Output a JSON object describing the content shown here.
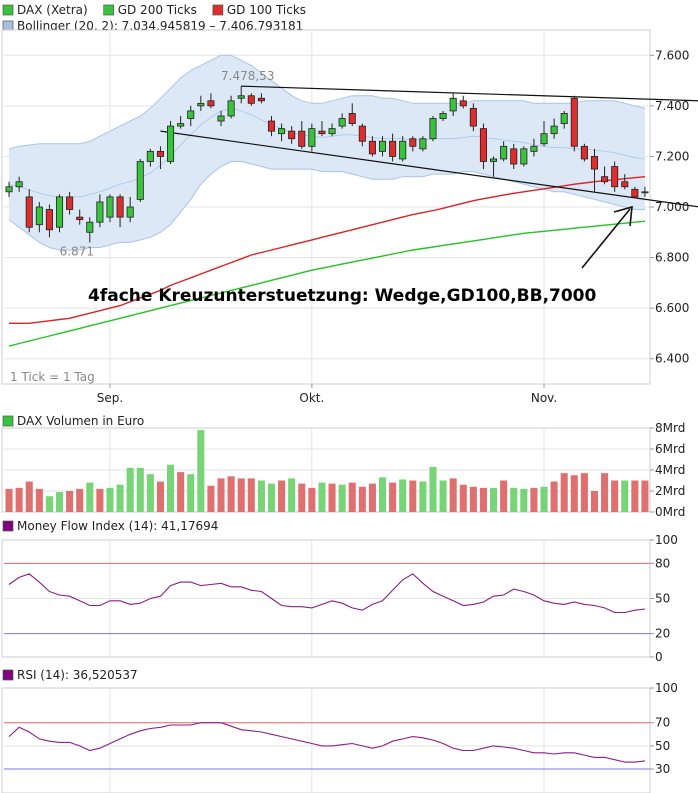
{
  "colors": {
    "up": "#39c23c",
    "down": "#de2d2d",
    "band_fill": "#dde8f6",
    "band_line": "#a9c4e6",
    "gd100": "#dd2222",
    "gd200": "#22c422",
    "volume_up": "#77d477",
    "volume_down": "#e07070",
    "mfi_line": "#8a1e8a",
    "upper_ref": "#e86a6a",
    "lower_ref": "#7a7ae6",
    "grid": "#e3e3e3",
    "frame": "#cccccc"
  },
  "chart_data": [
    {
      "type": "candlestick",
      "legend": [
        {
          "name": "DAX (Xetra)",
          "icon": "square-green-icon"
        },
        {
          "name": "GD 200 Ticks",
          "icon": "square-green-icon"
        },
        {
          "name": "GD 100 Ticks",
          "icon": "square-red-icon"
        },
        {
          "name": "Bollinger (20, 2): 7.034,945819 – 7.406,793181",
          "icon": "square-blue-icon"
        }
      ],
      "note": "1 Tick = 1 Tag",
      "annotation": "4fache Kreuzunterstuetzung: Wedge,GD100,BB,7000",
      "label_high": "7.478,53",
      "label_low": "6.871",
      "ylim": [
        6300,
        7700
      ],
      "y_ticks": [
        {
          "v": 6400,
          "label": "6.400"
        },
        {
          "v": 6600,
          "label": "6.600"
        },
        {
          "v": 6800,
          "label": "6.800"
        },
        {
          "v": 7000,
          "label": "7.000"
        },
        {
          "v": 7200,
          "label": "7.200"
        },
        {
          "v": 7400,
          "label": "7.400"
        },
        {
          "v": 7600,
          "label": "7.600"
        }
      ],
      "x_ticks": [
        {
          "i": 10,
          "label": "Sep."
        },
        {
          "i": 30,
          "label": "Okt."
        },
        {
          "i": 53,
          "label": "Nov."
        }
      ],
      "candles": [
        [
          7060,
          7100,
          7040,
          7080
        ],
        [
          7080,
          7120,
          7060,
          7100
        ],
        [
          7040,
          7070,
          6900,
          6920
        ],
        [
          6930,
          7020,
          6900,
          7000
        ],
        [
          6990,
          7010,
          6880,
          6910
        ],
        [
          6920,
          7050,
          6900,
          7040
        ],
        [
          7040,
          7060,
          6970,
          6990
        ],
        [
          6960,
          6990,
          6930,
          6950
        ],
        [
          6900,
          6960,
          6860,
          6940
        ],
        [
          6940,
          7050,
          6920,
          7020
        ],
        [
          6960,
          7050,
          6940,
          7040
        ],
        [
          7040,
          7050,
          6920,
          6960
        ],
        [
          6960,
          7040,
          6940,
          7000
        ],
        [
          7030,
          7190,
          7020,
          7180
        ],
        [
          7180,
          7230,
          7160,
          7220
        ],
        [
          7220,
          7240,
          7150,
          7200
        ],
        [
          7180,
          7340,
          7170,
          7320
        ],
        [
          7320,
          7360,
          7310,
          7330
        ],
        [
          7350,
          7400,
          7320,
          7380
        ],
        [
          7400,
          7440,
          7380,
          7410
        ],
        [
          7420,
          7450,
          7390,
          7400
        ],
        [
          7340,
          7380,
          7320,
          7360
        ],
        [
          7360,
          7440,
          7350,
          7420
        ],
        [
          7430,
          7478,
          7410,
          7440
        ],
        [
          7440,
          7450,
          7400,
          7410
        ],
        [
          7430,
          7450,
          7410,
          7420
        ],
        [
          7340,
          7360,
          7280,
          7300
        ],
        [
          7290,
          7330,
          7260,
          7310
        ],
        [
          7300,
          7320,
          7250,
          7270
        ],
        [
          7300,
          7340,
          7230,
          7240
        ],
        [
          7240,
          7330,
          7220,
          7310
        ],
        [
          7300,
          7340,
          7280,
          7290
        ],
        [
          7290,
          7330,
          7280,
          7310
        ],
        [
          7320,
          7370,
          7310,
          7350
        ],
        [
          7370,
          7410,
          7320,
          7330
        ],
        [
          7320,
          7330,
          7240,
          7260
        ],
        [
          7260,
          7280,
          7200,
          7210
        ],
        [
          7220,
          7280,
          7200,
          7260
        ],
        [
          7260,
          7290,
          7180,
          7200
        ],
        [
          7190,
          7280,
          7180,
          7260
        ],
        [
          7270,
          7280,
          7220,
          7240
        ],
        [
          7230,
          7280,
          7220,
          7270
        ],
        [
          7270,
          7360,
          7260,
          7350
        ],
        [
          7350,
          7380,
          7340,
          7370
        ],
        [
          7380,
          7450,
          7360,
          7430
        ],
        [
          7420,
          7440,
          7390,
          7400
        ],
        [
          7390,
          7410,
          7300,
          7320
        ],
        [
          7310,
          7330,
          7150,
          7180
        ],
        [
          7180,
          7200,
          7120,
          7190
        ],
        [
          7190,
          7260,
          7180,
          7240
        ],
        [
          7230,
          7250,
          7150,
          7170
        ],
        [
          7170,
          7240,
          7160,
          7230
        ],
        [
          7220,
          7270,
          7200,
          7240
        ],
        [
          7250,
          7340,
          7240,
          7290
        ],
        [
          7290,
          7350,
          7270,
          7320
        ],
        [
          7330,
          7380,
          7310,
          7370
        ],
        [
          7430,
          7440,
          7220,
          7240
        ],
        [
          7240,
          7250,
          7180,
          7190
        ],
        [
          7200,
          7230,
          7060,
          7150
        ],
        [
          7120,
          7160,
          7090,
          7100
        ],
        [
          7160,
          7180,
          7060,
          7080
        ],
        [
          7100,
          7130,
          7070,
          7080
        ],
        [
          7070,
          7080,
          7050,
          7040
        ],
        [
          7060,
          7080,
          7040,
          7060
        ]
      ],
      "bollinger_upper": [
        7230,
        7240,
        7245,
        7250,
        7250,
        7250,
        7250,
        7250,
        7260,
        7280,
        7300,
        7320,
        7340,
        7360,
        7390,
        7430,
        7470,
        7510,
        7540,
        7560,
        7580,
        7600,
        7600,
        7580,
        7560,
        7530,
        7500,
        7470,
        7440,
        7420,
        7410,
        7410,
        7420,
        7430,
        7440,
        7440,
        7440,
        7430,
        7430,
        7420,
        7410,
        7410,
        7410,
        7410,
        7410,
        7410,
        7420,
        7420,
        7420,
        7420,
        7420,
        7420,
        7410,
        7410,
        7410,
        7410,
        7410,
        7420,
        7420,
        7420,
        7420,
        7410,
        7400,
        7390
      ],
      "bollinger_lower": [
        6950,
        6920,
        6890,
        6860,
        6840,
        6830,
        6830,
        6830,
        6840,
        6840,
        6850,
        6860,
        6860,
        6870,
        6880,
        6900,
        6930,
        6980,
        7030,
        7090,
        7130,
        7160,
        7180,
        7180,
        7170,
        7160,
        7150,
        7150,
        7150,
        7150,
        7150,
        7140,
        7140,
        7140,
        7130,
        7120,
        7110,
        7110,
        7110,
        7120,
        7120,
        7120,
        7130,
        7130,
        7130,
        7140,
        7140,
        7130,
        7120,
        7110,
        7100,
        7090,
        7080,
        7070,
        7060,
        7060,
        7050,
        7040,
        7030,
        7020,
        7010,
        7000,
        6990,
        6990
      ],
      "gd100": [
        6540,
        6540,
        6540,
        6545,
        6550,
        6555,
        6560,
        6570,
        6580,
        6590,
        6600,
        6610,
        6625,
        6640,
        6655,
        6670,
        6690,
        6705,
        6720,
        6735,
        6750,
        6765,
        6780,
        6795,
        6810,
        6820,
        6830,
        6840,
        6850,
        6860,
        6870,
        6880,
        6890,
        6900,
        6910,
        6920,
        6930,
        6940,
        6950,
        6960,
        6970,
        6978,
        6986,
        6995,
        7005,
        7015,
        7025,
        7033,
        7040,
        7047,
        7054,
        7060,
        7066,
        7072,
        7078,
        7084,
        7090,
        7095,
        7100,
        7104,
        7108,
        7112,
        7116,
        7120
      ],
      "gd200": [
        6450,
        6460,
        6470,
        6480,
        6490,
        6500,
        6510,
        6520,
        6530,
        6540,
        6550,
        6560,
        6570,
        6580,
        6590,
        6600,
        6610,
        6620,
        6630,
        6640,
        6650,
        6660,
        6670,
        6680,
        6690,
        6700,
        6710,
        6720,
        6730,
        6740,
        6750,
        6758,
        6766,
        6774,
        6782,
        6790,
        6798,
        6806,
        6814,
        6822,
        6830,
        6836,
        6842,
        6848,
        6854,
        6860,
        6866,
        6872,
        6878,
        6884,
        6890,
        6896,
        6900,
        6904,
        6908,
        6912,
        6916,
        6920,
        6924,
        6928,
        6932,
        6936,
        6940,
        6944
      ]
    },
    {
      "type": "bar",
      "legend": [
        {
          "name": "DAX Volumen in Euro",
          "icon": "square-green-icon"
        }
      ],
      "ylim": [
        0,
        8
      ],
      "y_ticks": [
        {
          "v": 0,
          "label": "0Mrd"
        },
        {
          "v": 2,
          "label": "2Mrd"
        },
        {
          "v": 4,
          "label": "4Mrd"
        },
        {
          "v": 6,
          "label": "6Mrd"
        },
        {
          "v": 8,
          "label": "8Mrd"
        }
      ],
      "values": [
        2.2,
        2.3,
        2.9,
        2.2,
        1.5,
        1.9,
        2.0,
        2.2,
        2.8,
        2.2,
        2.3,
        2.6,
        4.2,
        4.2,
        3.6,
        2.9,
        4.5,
        3.8,
        3.6,
        7.8,
        2.5,
        3.2,
        3.4,
        3.2,
        3.2,
        3.0,
        2.7,
        3.0,
        3.2,
        2.7,
        2.3,
        2.8,
        2.7,
        2.6,
        2.8,
        2.4,
        2.7,
        3.3,
        2.8,
        3.1,
        3.0,
        2.9,
        4.3,
        3.0,
        3.2,
        2.6,
        2.4,
        2.3,
        2.3,
        3.0,
        2.3,
        2.2,
        2.3,
        2.4,
        2.9,
        3.7,
        3.5,
        3.7,
        2.0,
        3.7,
        3.0,
        3.0,
        3.0,
        3.0
      ],
      "up_flags": [
        false,
        false,
        false,
        false,
        true,
        true,
        false,
        false,
        true,
        false,
        true,
        true,
        true,
        true,
        true,
        false,
        true,
        false,
        true,
        true,
        false,
        false,
        false,
        false,
        false,
        true,
        true,
        false,
        true,
        false,
        false,
        true,
        false,
        true,
        false,
        false,
        false,
        true,
        false,
        true,
        false,
        true,
        true,
        true,
        false,
        false,
        false,
        false,
        true,
        false,
        true,
        true,
        false,
        true,
        false,
        false,
        false,
        false,
        false,
        false,
        false,
        true,
        false,
        false
      ]
    },
    {
      "type": "line",
      "legend": [
        {
          "name": "Money Flow Index (14): 41,17694",
          "icon": "square-purple-icon"
        }
      ],
      "ylim": [
        0,
        100
      ],
      "y_ticks": [
        {
          "v": 0,
          "label": "0"
        },
        {
          "v": 20,
          "label": "20"
        },
        {
          "v": 50,
          "label": "50"
        },
        {
          "v": 80,
          "label": "80"
        },
        {
          "v": 100,
          "label": "100"
        }
      ],
      "ref_lines": [
        80,
        20
      ],
      "values": [
        62,
        68,
        71,
        64,
        56,
        53,
        52,
        48,
        44,
        44,
        48,
        48,
        45,
        46,
        50,
        52,
        61,
        64,
        64,
        61,
        62,
        63,
        60,
        60,
        57,
        56,
        50,
        44,
        43,
        43,
        42,
        45,
        48,
        46,
        42,
        40,
        45,
        48,
        57,
        66,
        71,
        63,
        56,
        52,
        48,
        44,
        45,
        47,
        52,
        53,
        58,
        56,
        53,
        48,
        46,
        45,
        47,
        45,
        44,
        42,
        38,
        38,
        40,
        41
      ]
    },
    {
      "type": "line",
      "legend": [
        {
          "name": "RSI (14): 36,520537",
          "icon": "square-purple-icon"
        }
      ],
      "ylim": [
        0,
        100
      ],
      "y_ticks": [
        {
          "v": 30,
          "label": "30"
        },
        {
          "v": 50,
          "label": "50"
        },
        {
          "v": 70,
          "label": "70"
        },
        {
          "v": 100,
          "label": "100"
        }
      ],
      "ref_lines": [
        70,
        30
      ],
      "values": [
        58,
        66,
        62,
        56,
        54,
        53,
        53,
        50,
        46,
        48,
        52,
        56,
        60,
        63,
        65,
        66,
        68,
        68,
        68,
        70,
        70,
        70,
        67,
        64,
        63,
        62,
        60,
        58,
        56,
        54,
        52,
        50,
        50,
        51,
        52,
        50,
        48,
        50,
        54,
        56,
        58,
        57,
        55,
        52,
        48,
        46,
        46,
        48,
        50,
        49,
        48,
        46,
        44,
        44,
        43,
        44,
        44,
        42,
        40,
        40,
        38,
        36,
        36,
        37
      ]
    }
  ]
}
